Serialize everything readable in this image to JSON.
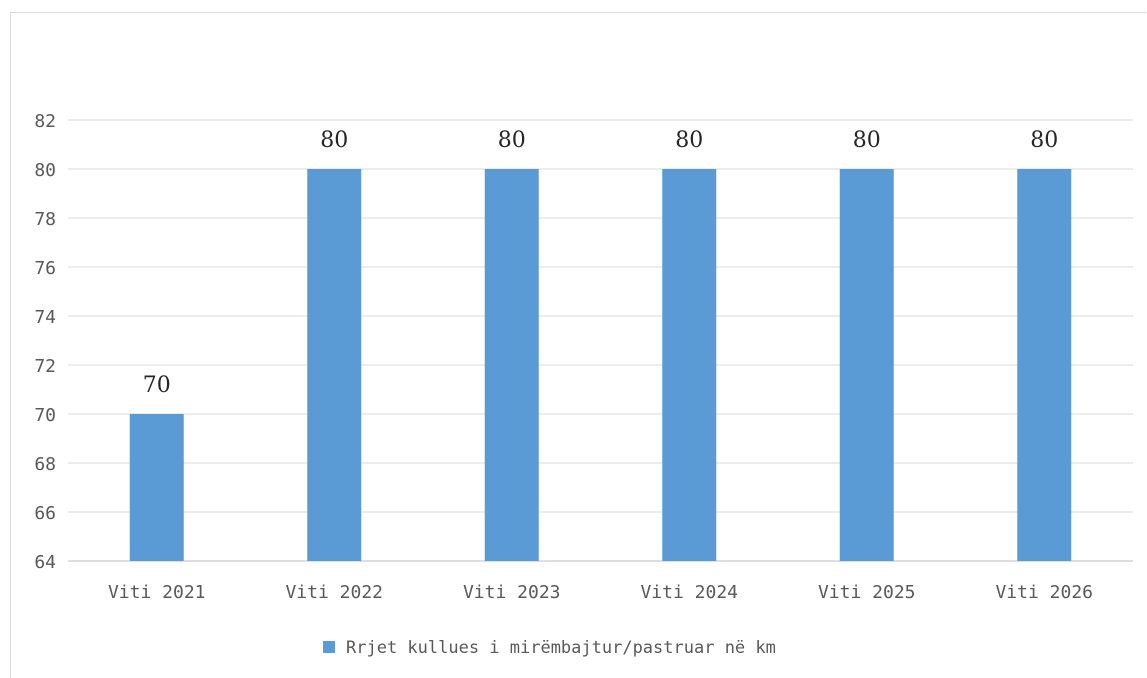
{
  "chart_data": {
    "type": "bar",
    "categories": [
      "Viti 2021",
      "Viti 2022",
      "Viti 2023",
      "Viti 2024",
      "Viti 2025",
      "Viti 2026"
    ],
    "series": [
      {
        "name": "Rrjet kullues i mirëmbajtur/pastruar në km",
        "values": [
          70,
          80,
          80,
          80,
          80,
          80
        ],
        "color": "#5b9bd5"
      }
    ],
    "data_labels": [
      "70",
      "80",
      "80",
      "80",
      "80",
      "80"
    ],
    "y_ticks": [
      "64",
      "66",
      "68",
      "70",
      "72",
      "74",
      "76",
      "78",
      "80",
      "82"
    ],
    "ylim": [
      64,
      82
    ],
    "grid": true,
    "legend_position": "bottom"
  }
}
